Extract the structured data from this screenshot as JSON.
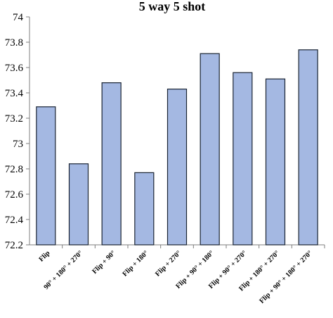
{
  "chart_data": {
    "type": "bar",
    "title": "5 way 5 shot",
    "xlabel": "",
    "ylabel": "",
    "categories": [
      "Flip",
      "90° + 180° + 270°",
      "Flip + 90°",
      "Flip + 180°",
      "Flip + 270°",
      "Flip + 90° + 180°",
      "Flip + 90° + 270°",
      "Flip + 180° + 270°",
      "Flip + 90° + 180° + 270°"
    ],
    "values": [
      73.29,
      72.84,
      73.48,
      72.77,
      73.43,
      73.71,
      73.56,
      73.51,
      73.74
    ],
    "ylim": [
      72.2,
      74
    ],
    "yticks": [
      "72.2",
      "72.4",
      "72.6",
      "72.8",
      "73",
      "73.2",
      "73.4",
      "73.6",
      "73.8",
      "74"
    ],
    "grid": false,
    "legend": "none",
    "bar_color": "#a4b8e2",
    "bar_edge_color": "#1a2433"
  }
}
